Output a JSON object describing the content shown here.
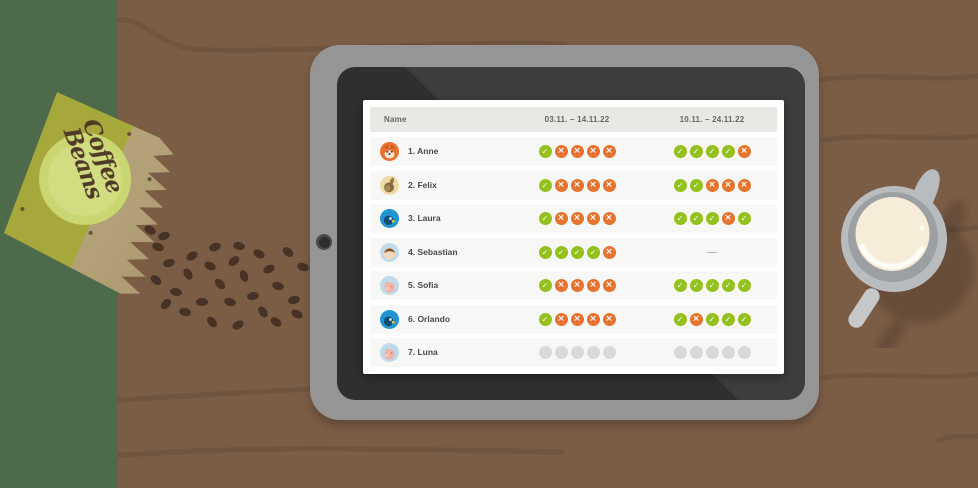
{
  "scene": {
    "bag_label_line1": "Coffee",
    "bag_label_line2": "Beans"
  },
  "colors": {
    "check": "#95c11e",
    "cross": "#e4742f",
    "pending": "#d9d9d9"
  },
  "table": {
    "columns": [
      "Name",
      "03.11. – 14.11.22",
      "10.11. – 24.11.22"
    ],
    "no_data_label": "—",
    "rows": [
      {
        "name": "1. Anne",
        "avatar": "fox",
        "period1": [
          "check",
          "cross",
          "cross",
          "cross",
          "cross"
        ],
        "period2": [
          "check",
          "check",
          "check",
          "check",
          "cross"
        ]
      },
      {
        "name": "2. Felix",
        "avatar": "rabbit",
        "period1": [
          "check",
          "cross",
          "cross",
          "cross",
          "cross"
        ],
        "period2": [
          "check",
          "check",
          "cross",
          "cross",
          "cross"
        ]
      },
      {
        "name": "3. Laura",
        "avatar": "bird",
        "period1": [
          "check",
          "cross",
          "cross",
          "cross",
          "cross"
        ],
        "period2": [
          "check",
          "check",
          "check",
          "cross",
          "check"
        ]
      },
      {
        "name": "4. Sebastian",
        "avatar": "boy",
        "period1": [
          "check",
          "check",
          "check",
          "check",
          "cross"
        ],
        "period2": "dash"
      },
      {
        "name": "5. Sofia",
        "avatar": "pig",
        "period1": [
          "check",
          "cross",
          "cross",
          "cross",
          "cross"
        ],
        "period2": [
          "check",
          "check",
          "check",
          "check",
          "check"
        ]
      },
      {
        "name": "6. Orlando",
        "avatar": "bird",
        "period1": [
          "check",
          "cross",
          "cross",
          "cross",
          "cross"
        ],
        "period2": [
          "check",
          "cross",
          "check",
          "check",
          "check"
        ]
      },
      {
        "name": "7. Luna",
        "avatar": "pig",
        "period1": [
          "pending",
          "pending",
          "pending",
          "pending",
          "pending"
        ],
        "period2": [
          "pending",
          "pending",
          "pending",
          "pending",
          "pending"
        ]
      }
    ]
  }
}
